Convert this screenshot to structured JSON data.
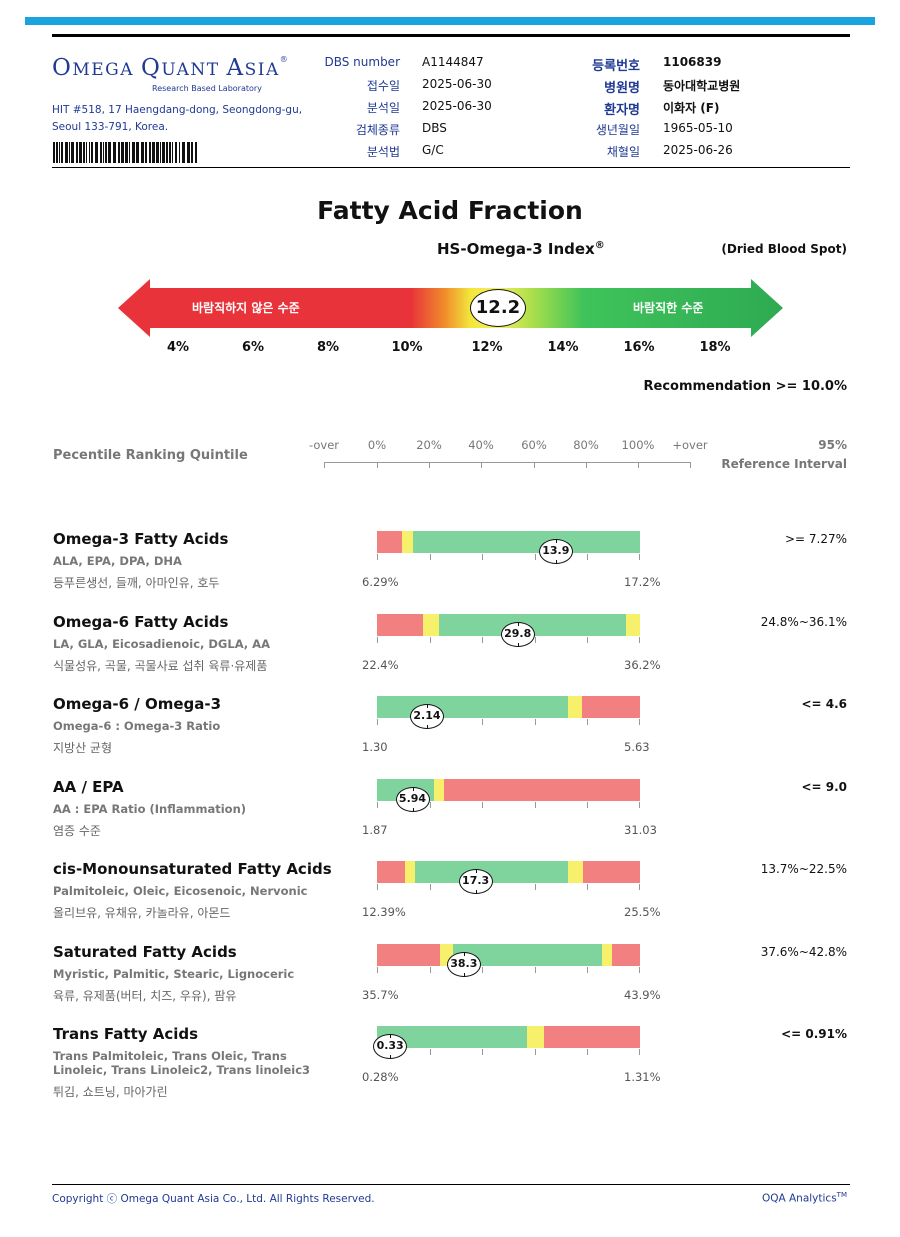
{
  "header": {
    "logo_words": [
      "MEGA",
      "UANT",
      "SIA"
    ],
    "logo_caps": [
      "O",
      "Q",
      "A"
    ],
    "logo_reg": "®",
    "logo_sub": "Research Based Laboratory",
    "address_line1": "HIT #518, 17 Haengdang-dong, Seongdong-gu,",
    "address_line2": "Seoul 133-791, Korea.",
    "left_fields": [
      {
        "label": "DBS number",
        "value": "A1144847"
      },
      {
        "label": "접수일",
        "value": "2025-06-30"
      },
      {
        "label": "분석일",
        "value": "2025-06-30"
      },
      {
        "label": "검체종류",
        "value": "DBS"
      },
      {
        "label": "분석법",
        "value": "G/C"
      }
    ],
    "right_fields": [
      {
        "label": "등록번호",
        "value": "1106839"
      },
      {
        "label": "병원명",
        "value": "동아대학교병원"
      },
      {
        "label": "환자명",
        "value": "이화자 (F)"
      },
      {
        "label": "생년월일",
        "value": "1965-05-10"
      },
      {
        "label": "채혈일",
        "value": "2025-06-26"
      }
    ]
  },
  "report": {
    "title": "Fatty Acid Fraction",
    "subtitle": "HS-Omega-3 Index",
    "subtitle_reg": "®",
    "sample_type": "(Dried Blood Spot)",
    "undesirable_label": "바람직하지 않은 수준",
    "desirable_label": "바람직한 수준",
    "index_value": 12.2,
    "index_value_text": "12.2",
    "scale_ticks": [
      "4%",
      "6%",
      "8%",
      "10%",
      "12%",
      "14%",
      "16%",
      "18%"
    ],
    "recommendation": "Recommendation  >= 10.0%"
  },
  "percentile": {
    "label": "Pecentile Ranking Quintile",
    "ticks": [
      "-over",
      "0%",
      "20%",
      "40%",
      "60%",
      "80%",
      "100%",
      "+over"
    ],
    "ref_line1": "95%",
    "ref_line2": "Reference Interval"
  },
  "colors": {
    "red": "#f28080",
    "yellow": "#f7f06a",
    "green": "#7fd49e",
    "accent_blue": "#1aa3de",
    "text_blue": "#1f3a93"
  },
  "sections": [
    {
      "title": "Omega-3 Fatty Acids",
      "sub": "ALA, EPA, DPA, DHA",
      "kr": "등푸른생선, 들깨, 아마인유, 호두",
      "ref": ">= 7.27%",
      "min": "6.29%",
      "max": "17.2%",
      "value": "13.9",
      "value_pct": 68,
      "segments": [
        {
          "c": "red",
          "w": 9.5
        },
        {
          "c": "yellow",
          "w": 4
        },
        {
          "c": "green",
          "w": 86.5
        }
      ]
    },
    {
      "title": "Omega-6 Fatty Acids",
      "sub": "LA, GLA, Eicosadienoic, DGLA, AA",
      "kr": "식물성유, 곡물, 곡물사료 섭취 육류·유제품",
      "ref": "24.8%~36.1%",
      "min": "22.4%",
      "max": "36.2%",
      "value": "29.8",
      "value_pct": 53.5,
      "segments": [
        {
          "c": "red",
          "w": 17.5
        },
        {
          "c": "yellow",
          "w": 6
        },
        {
          "c": "green",
          "w": 71
        },
        {
          "c": "yellow",
          "w": 5.5
        }
      ]
    },
    {
      "title": "Omega-6 / Omega-3",
      "sub": "Omega-6 : Omega-3 Ratio",
      "kr": "지방산 균형",
      "ref": "<= 4.6",
      "min": "1.30",
      "max": "5.63",
      "value": "2.14",
      "value_pct": 19,
      "segments": [
        {
          "c": "green",
          "w": 72.5
        },
        {
          "c": "yellow",
          "w": 5.5
        },
        {
          "c": "red",
          "w": 22
        }
      ]
    },
    {
      "title": "AA / EPA",
      "sub": "AA : EPA Ratio (Inflammation)",
      "kr": "염증 수준",
      "ref": "<= 9.0",
      "min": "1.87",
      "max": "31.03",
      "value": "5.94",
      "value_pct": 13.5,
      "segments": [
        {
          "c": "green",
          "w": 21.5
        },
        {
          "c": "yellow",
          "w": 4
        },
        {
          "c": "red",
          "w": 74.5
        }
      ]
    },
    {
      "title": "cis-Monounsaturated Fatty Acids",
      "sub": "Palmitoleic, Oleic, Eicosenoic, Nervonic",
      "kr": "올리브유, 유채유, 카놀라유, 아몬드",
      "ref": "13.7%~22.5%",
      "min": "12.39%",
      "max": "25.5%",
      "value": "17.3",
      "value_pct": 37.5,
      "segments": [
        {
          "c": "red",
          "w": 10.5
        },
        {
          "c": "yellow",
          "w": 4
        },
        {
          "c": "green",
          "w": 58
        },
        {
          "c": "yellow",
          "w": 6
        },
        {
          "c": "red",
          "w": 21.5
        }
      ]
    },
    {
      "title": "Saturated Fatty Acids",
      "sub": "Myristic, Palmitic, Stearic, Lignoceric",
      "kr": "육류, 유제품(버터, 치즈, 우유), 팜유",
      "ref": "37.6%~42.8%",
      "min": "35.7%",
      "max": "43.9%",
      "value": "38.3",
      "value_pct": 33,
      "segments": [
        {
          "c": "red",
          "w": 24
        },
        {
          "c": "yellow",
          "w": 5
        },
        {
          "c": "green",
          "w": 56.5
        },
        {
          "c": "yellow",
          "w": 4
        },
        {
          "c": "red",
          "w": 10.5
        }
      ]
    },
    {
      "title": "Trans Fatty Acids",
      "sub": "Trans Palmitoleic, Trans Oleic, Trans",
      "sub2": "Linoleic, Trans Linoleic2, Trans linoleic3",
      "kr": "튀김, 쇼트닝, 마아가린",
      "ref": "<= 0.91%",
      "min": "0.28%",
      "max": "1.31%",
      "value": "0.33",
      "value_pct": 5,
      "segments": [
        {
          "c": "green",
          "w": 57
        },
        {
          "c": "yellow",
          "w": 6.5
        },
        {
          "c": "red",
          "w": 36.5
        }
      ]
    }
  ],
  "footer": {
    "copyright": "Copyright ⓒ Omega Quant Asia Co., Ltd.  All Rights Reserved.",
    "brand": "OQA Analytics",
    "brand_tm": "TM"
  }
}
